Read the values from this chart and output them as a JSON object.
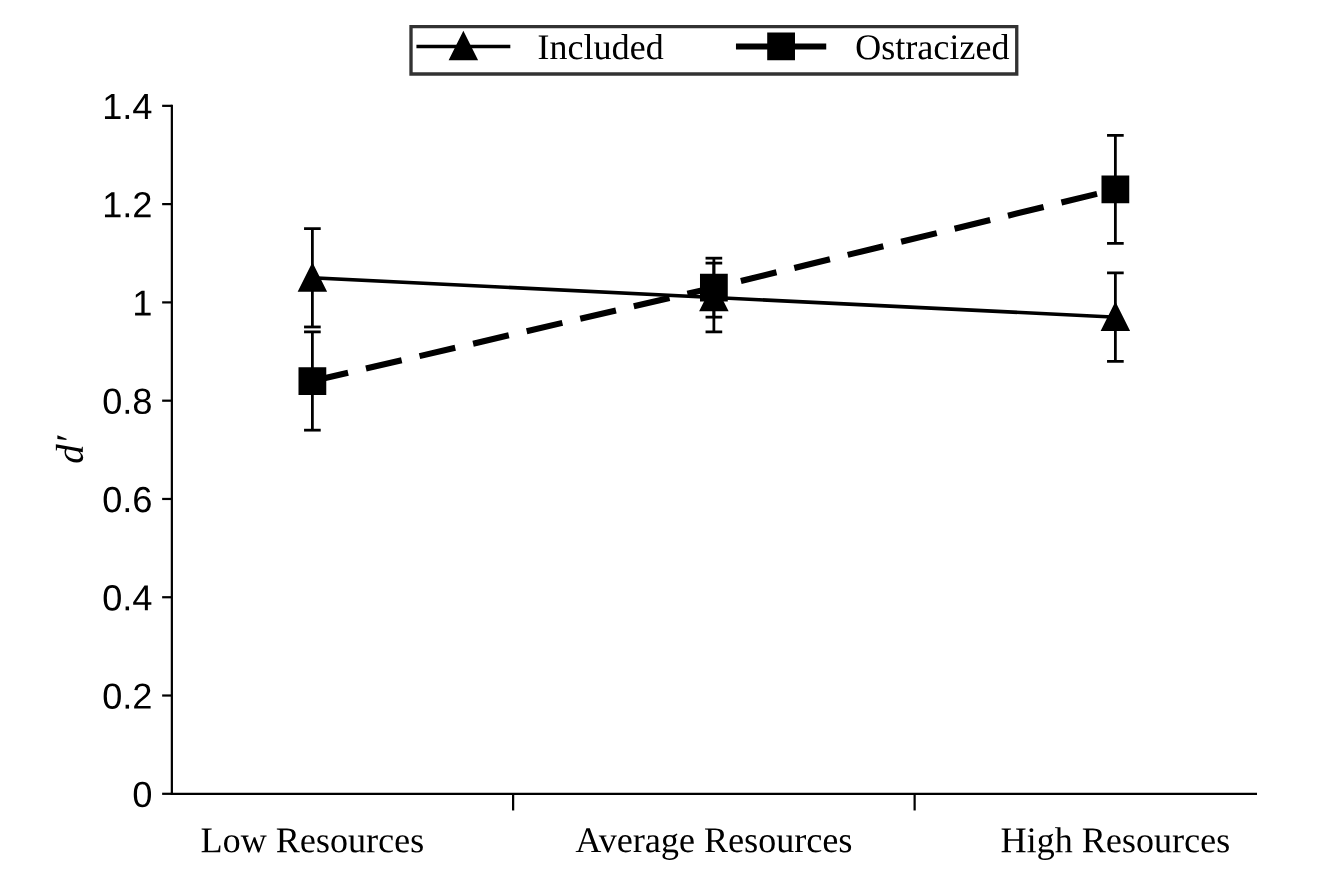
{
  "chart_data": {
    "type": "line",
    "ylabel": "d′",
    "categories": [
      "Low Resources",
      "Average Resources",
      "High Resources"
    ],
    "series": [
      {
        "name": "Included",
        "color": "#000000",
        "values": [
          1.05,
          1.01,
          0.97
        ],
        "errors": [
          0.1,
          0.07,
          0.09
        ],
        "marker": "triangle",
        "line_style": "solid"
      },
      {
        "name": "Ostracized",
        "color": "#000000",
        "values": [
          0.84,
          1.03,
          1.23
        ],
        "errors": [
          0.1,
          0.06,
          0.11
        ],
        "marker": "square",
        "line_style": "dashed"
      }
    ],
    "ylim": [
      0,
      1.4
    ],
    "yticks": [
      0,
      0.2,
      0.4,
      0.6,
      0.8,
      1,
      1.2,
      1.4
    ],
    "grid": false,
    "legend": "top"
  }
}
